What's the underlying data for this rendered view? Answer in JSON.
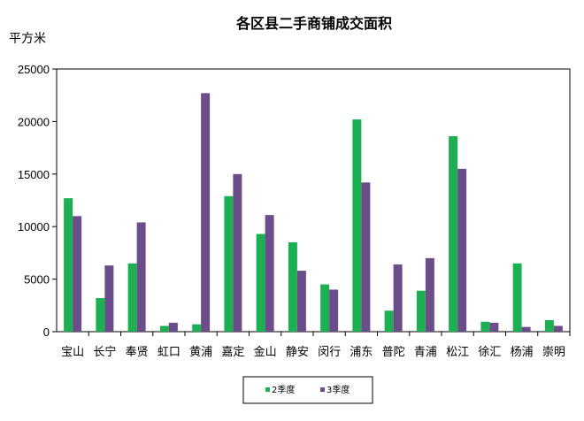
{
  "chart_data": {
    "type": "bar",
    "title": "各区县二手商铺成交面积",
    "ylabel": "平方米",
    "xlabel": "",
    "ylim": [
      0,
      25000
    ],
    "yticks": [
      0,
      5000,
      10000,
      15000,
      20000,
      25000
    ],
    "grid": false,
    "legend_position": "bottom",
    "categories": [
      "宝山",
      "长宁",
      "奉贤",
      "虹口",
      "黄浦",
      "嘉定",
      "金山",
      "静安",
      "闵行",
      "浦东",
      "普陀",
      "青浦",
      "松江",
      "徐汇",
      "杨浦",
      "崇明"
    ],
    "series": [
      {
        "name": "2季度",
        "color": "#1db052",
        "values": [
          12700,
          3200,
          6500,
          550,
          700,
          12900,
          9300,
          8500,
          4500,
          20200,
          2000,
          3900,
          18600,
          950,
          6500,
          1100
        ]
      },
      {
        "name": "3季度",
        "color": "#6b4d8a",
        "values": [
          11000,
          6300,
          10400,
          850,
          22700,
          15000,
          11100,
          5800,
          4000,
          14200,
          6400,
          7000,
          15500,
          850,
          450,
          550
        ]
      }
    ]
  }
}
